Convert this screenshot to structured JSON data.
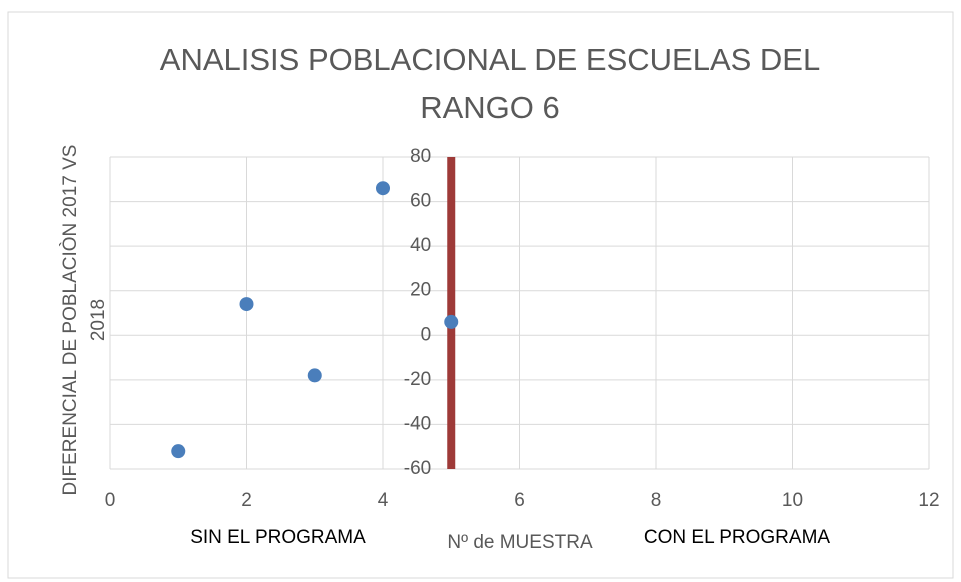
{
  "chart_data": {
    "type": "scatter",
    "title": "ANALISIS POBLACIONAL DE ESCUELAS DEL RANGO 6",
    "ylabel": "DIFERENCIAL DE POBLACIÒN 2017 VS 2018",
    "xlabel": "Nº de MUESTRA",
    "annotations": [
      "SIN EL PROGRAMA",
      "CON EL PROGRAMA"
    ],
    "x": [
      1,
      2,
      3,
      4,
      5
    ],
    "values": [
      -52,
      14,
      -18,
      66,
      6
    ],
    "color": "#4a7ebb",
    "xlim": [
      0,
      12
    ],
    "xticks": [
      0,
      2,
      4,
      6,
      8,
      10,
      12
    ],
    "ylim": [
      -60,
      80
    ],
    "yticks": [
      -60,
      -40,
      -20,
      0,
      20,
      40,
      60,
      80
    ],
    "y_axis_at": 5,
    "reference_line": {
      "x": 5,
      "color": "#9e3a38"
    },
    "grid": true
  }
}
